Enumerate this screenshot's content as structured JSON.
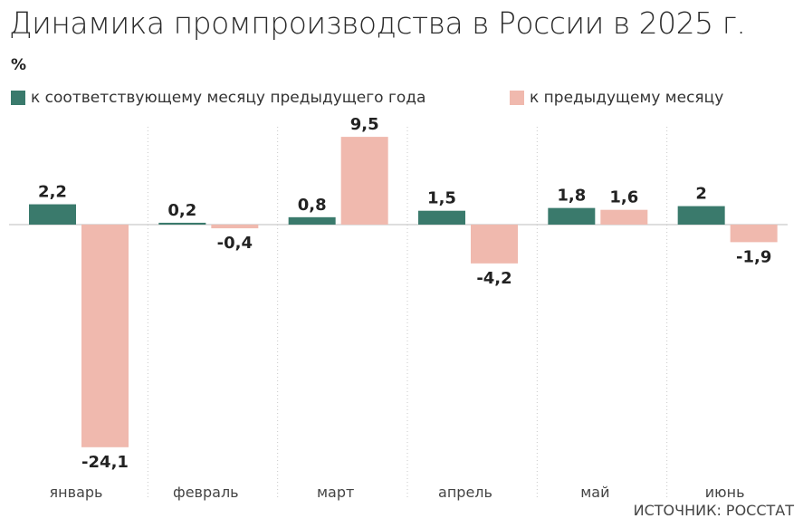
{
  "colors": {
    "series_yoy": "#3a7a6c",
    "series_mom": "#f0b9ae",
    "zero_line": "#bdbdbd",
    "separator": "#c8c8c8"
  },
  "chart_data": {
    "type": "bar",
    "title": "Динамика промпроизводства в России в 2025 г.",
    "unit": "%",
    "categories": [
      "январь",
      "февраль",
      "март",
      "апрель",
      "май",
      "июнь"
    ],
    "series": [
      {
        "name": "к соответствующему месяцу предыдущего года",
        "values": [
          2.2,
          0.2,
          0.8,
          1.5,
          1.8,
          2
        ],
        "labels": [
          "2,2",
          "0,2",
          "0,8",
          "1,5",
          "1,8",
          "2"
        ]
      },
      {
        "name": "к предыдущему месяцу",
        "values": [
          -24.1,
          -0.4,
          9.5,
          -4.2,
          1.6,
          -1.9
        ],
        "labels": [
          "-24,1",
          "-0,4",
          "9,5",
          "-4,2",
          "1,6",
          "-1,9"
        ]
      }
    ],
    "ylim": [
      -24.1,
      9.5
    ],
    "legend_position": "top",
    "grid": false
  },
  "source": "ИСТОЧНИК: РОССТАТ"
}
